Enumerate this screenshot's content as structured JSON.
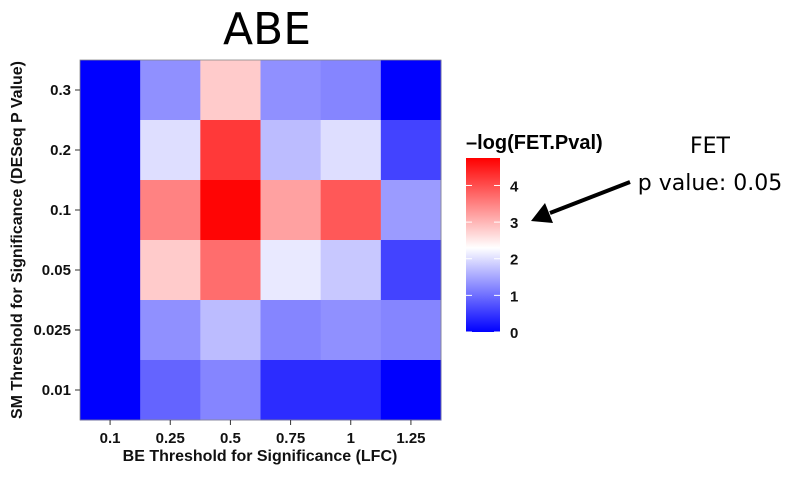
{
  "chart_data": {
    "type": "heatmap",
    "title": "ABE",
    "xlabel": "BE Threshold for Significance (LFC)",
    "ylabel": "SM Threshold for Significance (DESeq P Value)",
    "x_categories": [
      "0.1",
      "0.25",
      "0.5",
      "0.75",
      "1",
      "1.25"
    ],
    "y_categories": [
      "0.3",
      "0.2",
      "0.1",
      "0.05",
      "0.025",
      "0.01"
    ],
    "values": [
      [
        0.0,
        1.3,
        2.8,
        1.3,
        1.2,
        0.0
      ],
      [
        0.0,
        2.0,
        4.2,
        1.7,
        2.0,
        0.6
      ],
      [
        0.0,
        3.5,
        4.7,
        3.2,
        3.9,
        1.4
      ],
      [
        0.0,
        2.8,
        3.7,
        2.1,
        1.8,
        0.6
      ],
      [
        0.0,
        1.3,
        1.7,
        1.2,
        1.3,
        1.2
      ],
      [
        0.0,
        0.9,
        1.2,
        0.4,
        0.4,
        0.0
      ]
    ],
    "legend": {
      "title": "–log(FET.Pval)",
      "ticks": [
        "0",
        "1",
        "2",
        "3",
        "4"
      ],
      "range": [
        0,
        4.75
      ],
      "midpoint": 2.3,
      "low_color": "#0000ff",
      "mid_color": "#ffffff",
      "high_color": "#ff0000",
      "placement": "right"
    },
    "annotation": {
      "line1": "FET",
      "line2": "p value: 0.05",
      "points_to": "3"
    }
  }
}
